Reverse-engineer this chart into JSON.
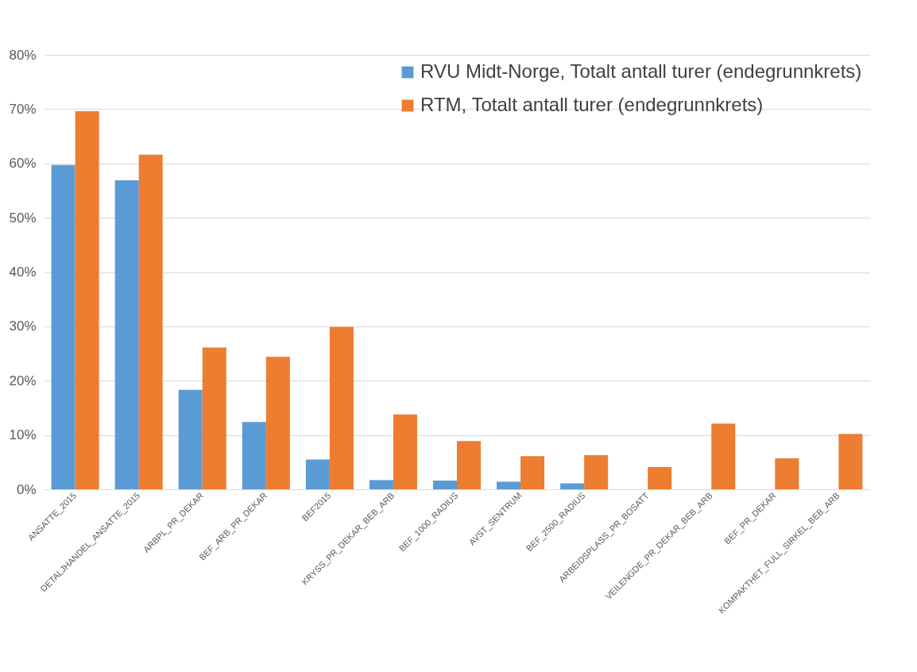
{
  "chart_data": {
    "type": "bar",
    "categories": [
      "ANSATTE_2015",
      "DETALJHANDEL_ANSATTE_2015",
      "ARBPL_PR_DEKAR",
      "BEF_ARB_PR_DEKAR",
      "BEF2015",
      "KRYSS_PR_DEKAR_BEB_ARB",
      "BEF_1000_RADIUS",
      "AVST_SENTRUM",
      "BEF_2500_RADIUS",
      "ARBEIDSPLASS_PR_BOSATT",
      "VEILENGDE_PR_DEKAR_BEB_ARB",
      "BEF_PR_DEKAR",
      "KOMPAKTHET_FULL_SIRKEL_BEB_ARB"
    ],
    "series": [
      {
        "name": "RVU Midt-Norge, Totalt antall turer (endegrunnkrets)",
        "color": "#5b9bd5",
        "values": [
          59.7,
          56.9,
          18.3,
          12.4,
          5.5,
          1.7,
          1.6,
          1.4,
          1.1,
          null,
          null,
          null,
          null
        ]
      },
      {
        "name": "RTM, Totalt antall turer (endegrunnkrets)",
        "color": "#ed7d31",
        "values": [
          69.6,
          61.6,
          26.1,
          24.4,
          29.9,
          13.8,
          8.9,
          6.1,
          6.3,
          4.1,
          12.1,
          5.7,
          10.2
        ]
      }
    ],
    "ylim": [
      0,
      80
    ],
    "yticks": [
      {
        "value": 0,
        "label": "0%"
      },
      {
        "value": 10,
        "label": "10%"
      },
      {
        "value": 20,
        "label": "20%"
      },
      {
        "value": 30,
        "label": "30%"
      },
      {
        "value": 40,
        "label": "40%"
      },
      {
        "value": 50,
        "label": "50%"
      },
      {
        "value": 60,
        "label": "60%"
      },
      {
        "value": 70,
        "label": "70%"
      },
      {
        "value": 80,
        "label": "80%"
      }
    ],
    "grid": "y",
    "legend": "top right"
  }
}
